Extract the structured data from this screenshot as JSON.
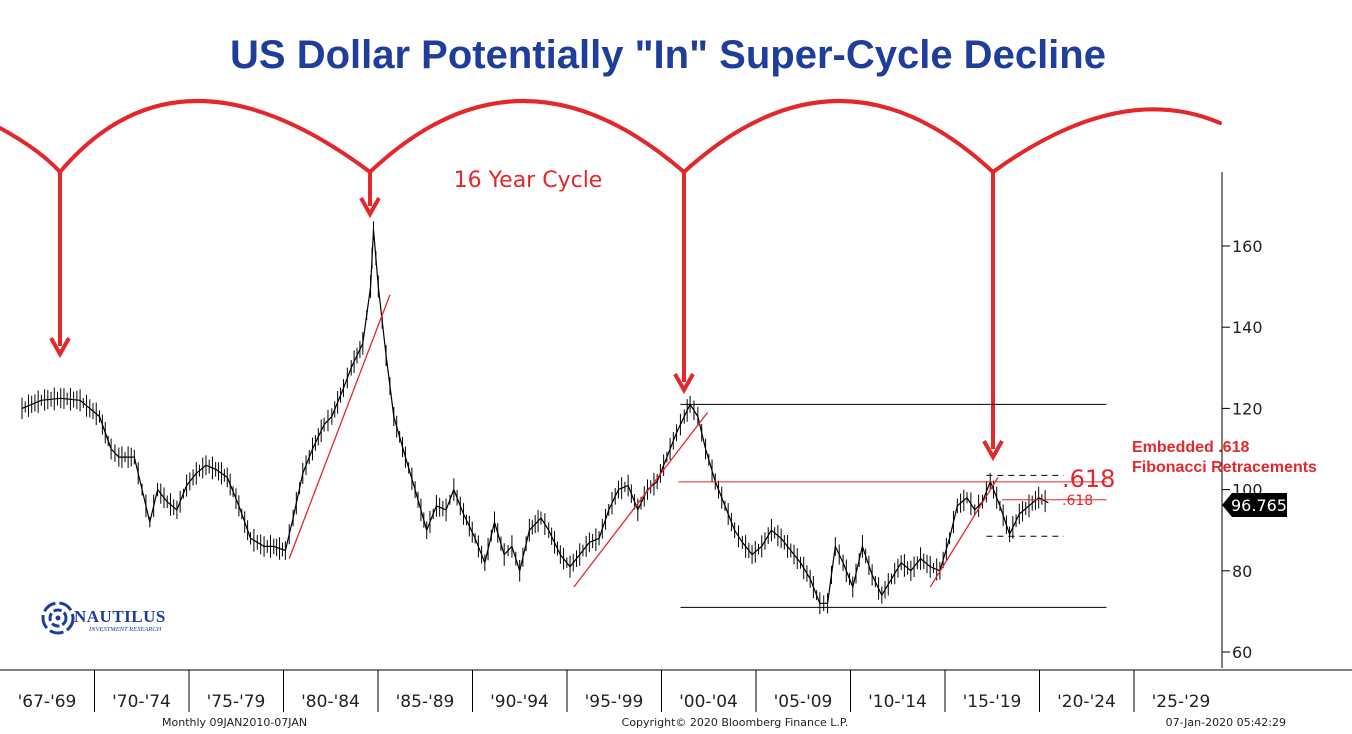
{
  "chart_data": {
    "type": "line",
    "title": "US Dollar Potentially \"In\" Super-Cycle Decline",
    "y_axis": {
      "ticks": [
        60,
        80,
        100,
        120,
        140,
        160
      ],
      "ylim": [
        57,
        176
      ]
    },
    "x_axis": {
      "tick_labels": [
        "'67-'69",
        "'70-'74",
        "'75-'79",
        "'80-'84",
        "'85-'89",
        "'90-'94",
        "'95-'99",
        "'00-'04",
        "'05-'09",
        "'10-'14",
        "'15-'19",
        "'20-'24",
        "'25-'29"
      ],
      "xlim": [
        1967,
        2030
      ]
    },
    "series": [
      {
        "values_xy": [
          [
            1967.0,
            120
          ],
          [
            1968.0,
            122
          ],
          [
            1969.0,
            122.5
          ],
          [
            1970.0,
            122
          ],
          [
            1971.0,
            118
          ],
          [
            1971.6,
            110
          ],
          [
            1972.0,
            108
          ],
          [
            1972.8,
            108
          ],
          [
            1973.2,
            100
          ],
          [
            1973.6,
            92
          ],
          [
            1974.0,
            100
          ],
          [
            1974.5,
            97
          ],
          [
            1975.0,
            95
          ],
          [
            1975.5,
            101
          ],
          [
            1976.0,
            104
          ],
          [
            1976.5,
            106
          ],
          [
            1977.0,
            105
          ],
          [
            1977.6,
            103
          ],
          [
            1978.2,
            96
          ],
          [
            1978.8,
            88
          ],
          [
            1979.5,
            86
          ],
          [
            1980.0,
            86
          ],
          [
            1980.6,
            85
          ],
          [
            1981.0,
            93
          ],
          [
            1981.5,
            104
          ],
          [
            1982.0,
            110
          ],
          [
            1982.6,
            116
          ],
          [
            1983.0,
            118
          ],
          [
            1983.6,
            125
          ],
          [
            1984.0,
            130
          ],
          [
            1984.6,
            136
          ],
          [
            1985.0,
            150
          ],
          [
            1985.15,
            164
          ],
          [
            1985.4,
            150
          ],
          [
            1985.8,
            133
          ],
          [
            1986.2,
            118
          ],
          [
            1986.8,
            108
          ],
          [
            1987.3,
            100
          ],
          [
            1987.9,
            90
          ],
          [
            1988.4,
            96
          ],
          [
            1988.9,
            95
          ],
          [
            1989.3,
            100
          ],
          [
            1989.8,
            94
          ],
          [
            1990.4,
            88
          ],
          [
            1990.9,
            82
          ],
          [
            1991.4,
            92
          ],
          [
            1991.9,
            84
          ],
          [
            1992.3,
            86
          ],
          [
            1992.7,
            80
          ],
          [
            1993.2,
            90
          ],
          [
            1993.8,
            93
          ],
          [
            1994.2,
            90
          ],
          [
            1994.8,
            84
          ],
          [
            1995.3,
            81
          ],
          [
            1995.8,
            84
          ],
          [
            1996.3,
            87
          ],
          [
            1996.8,
            88
          ],
          [
            1997.3,
            95
          ],
          [
            1997.8,
            100
          ],
          [
            1998.3,
            101
          ],
          [
            1998.8,
            95
          ],
          [
            1999.3,
            100
          ],
          [
            1999.8,
            102
          ],
          [
            2000.3,
            108
          ],
          [
            2000.8,
            114
          ],
          [
            2001.2,
            118
          ],
          [
            2001.5,
            121
          ],
          [
            2001.9,
            118
          ],
          [
            2002.3,
            110
          ],
          [
            2002.8,
            102
          ],
          [
            2003.3,
            96
          ],
          [
            2003.8,
            90
          ],
          [
            2004.2,
            87
          ],
          [
            2004.7,
            84
          ],
          [
            2005.2,
            86
          ],
          [
            2005.7,
            90
          ],
          [
            2006.2,
            88
          ],
          [
            2006.7,
            85
          ],
          [
            2007.2,
            82
          ],
          [
            2007.7,
            78
          ],
          [
            2008.2,
            72
          ],
          [
            2008.6,
            72
          ],
          [
            2009.0,
            86
          ],
          [
            2009.4,
            82
          ],
          [
            2009.9,
            76
          ],
          [
            2010.4,
            86
          ],
          [
            2010.9,
            79
          ],
          [
            2011.4,
            74
          ],
          [
            2011.9,
            78
          ],
          [
            2012.4,
            82
          ],
          [
            2012.9,
            80
          ],
          [
            2013.4,
            83
          ],
          [
            2013.9,
            81
          ],
          [
            2014.4,
            80
          ],
          [
            2014.9,
            88
          ],
          [
            2015.3,
            96
          ],
          [
            2015.8,
            98
          ],
          [
            2016.2,
            95
          ],
          [
            2016.6,
            97
          ],
          [
            2017.0,
            102
          ],
          [
            2017.5,
            96
          ],
          [
            2018.0,
            89
          ],
          [
            2018.5,
            94
          ],
          [
            2019.0,
            96
          ],
          [
            2019.5,
            98
          ],
          [
            2020.0,
            96.765
          ]
        ]
      }
    ],
    "last_value": "96.765",
    "annotations": {
      "cycle_label": "16 Year Cycle",
      "fib_large": ".618",
      "fib_small": ".618",
      "embedded_line1": "Embedded .618",
      "embedded_line2": "Fibonacci Retracements"
    },
    "footer": {
      "left": "Monthly 09JAN2010-07JAN",
      "center": "Copyright© 2020 Bloomberg Finance L.P.",
      "right": "07-Jan-2020 05:42:29"
    },
    "logo": {
      "name": "NAUTILUS",
      "sub": "INVESTMENT RESEARCH"
    },
    "colors": {
      "title": "#1f3d9a",
      "annotation": "#e3272b",
      "price_line": "#000000"
    }
  }
}
